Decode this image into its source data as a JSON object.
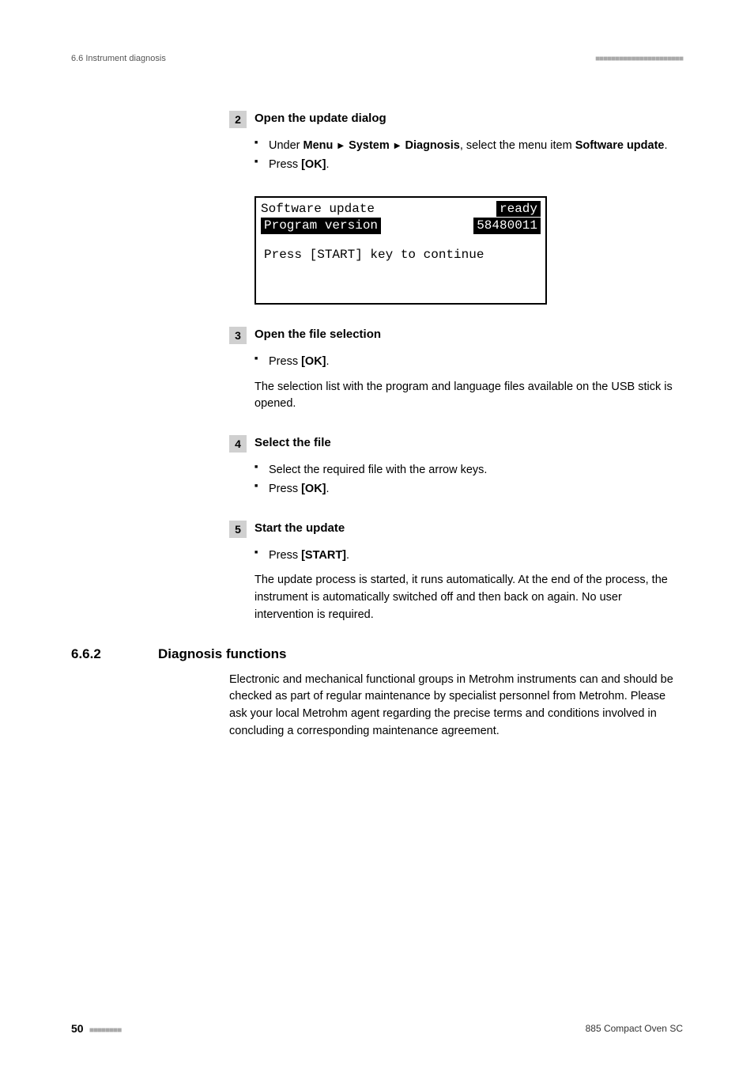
{
  "header": {
    "left": "6.6 Instrument diagnosis",
    "dots": "■■■■■■■■■■■■■■■■■■■■■■"
  },
  "steps": [
    {
      "num": "2",
      "title": "Open the update dialog",
      "bullets": [
        {
          "html": "Under <b>Menu</b> <span class='triangle'>▶</span> <b>System</b> <span class='triangle'>▶</span> <b>Diagnosis</b>, select the menu item <b>Software update</b>."
        },
        {
          "html": "Press <b>[OK]</b>."
        }
      ],
      "lcd": {
        "row1_left": "Software update",
        "row1_right": "ready",
        "row2_left": "Program version",
        "row2_right": "58480011",
        "row3": "Press [START] key to continue"
      }
    },
    {
      "num": "3",
      "title": "Open the file selection",
      "bullets": [
        {
          "html": "Press <b>[OK]</b>."
        }
      ],
      "paragraph": "The selection list with the program and language files available on the USB stick is opened."
    },
    {
      "num": "4",
      "title": "Select the file",
      "bullets": [
        {
          "html": "Select the required file with the arrow keys."
        },
        {
          "html": "Press <b>[OK]</b>."
        }
      ]
    },
    {
      "num": "5",
      "title": "Start the update",
      "bullets": [
        {
          "html": "Press <b>[START]</b>."
        }
      ],
      "paragraph": "The update process is started, it runs automatically. At the end of the process, the instrument is automatically switched off and then back on again. No user intervention is required."
    }
  ],
  "section": {
    "num": "6.6.2",
    "title": "Diagnosis functions",
    "body": "Electronic and mechanical functional groups in Metrohm instruments can and should be checked as part of regular maintenance by specialist personnel from Metrohm. Please ask your local Metrohm agent regarding the precise terms and conditions involved in concluding a corresponding maintenance agreement."
  },
  "footer": {
    "page": "50",
    "dots": "■■■■■■■■",
    "right": "885 Compact Oven SC"
  }
}
